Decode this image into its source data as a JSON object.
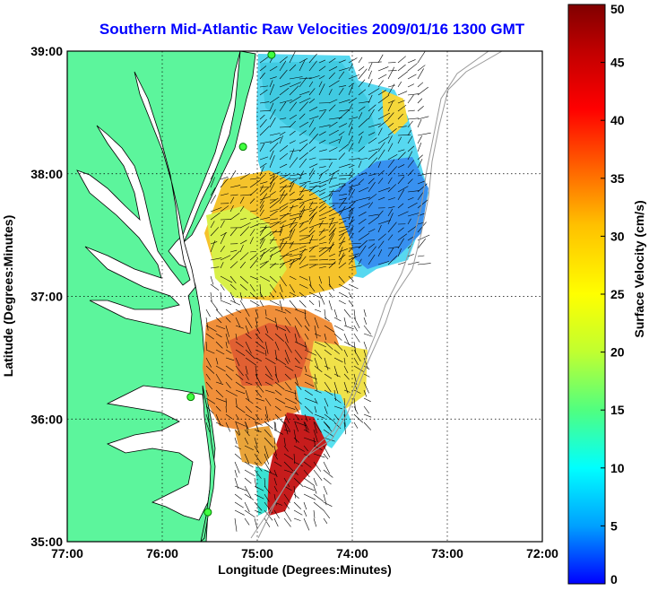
{
  "title": "Southern Mid-Atlantic Raw Velocities 2009/01/16 1300 GMT",
  "x_axis": {
    "label": "Longitude (Degrees:Minutes)",
    "ticks": [
      "77:00",
      "76:00",
      "75:00",
      "74:00",
      "73:00",
      "72:00"
    ],
    "range": [
      -77,
      -72
    ]
  },
  "y_axis": {
    "label": "Latitude (Degrees:Minutes)",
    "ticks": [
      "39:00",
      "38:00",
      "37:00",
      "36:00",
      "35:00"
    ],
    "range": [
      35,
      39
    ]
  },
  "colorbar": {
    "label": "Surface Velocity (cm/s)",
    "ticks": [
      "50",
      "45",
      "40",
      "35",
      "30",
      "25",
      "20",
      "15",
      "10",
      "5",
      "0"
    ],
    "range": [
      0,
      50
    ],
    "colormap": [
      "#0000ff",
      "#00a0ff",
      "#00ffff",
      "#50ff80",
      "#c0ff30",
      "#ffff00",
      "#ffc000",
      "#ff6000",
      "#ff0000",
      "#c00000",
      "#800000"
    ]
  },
  "colors": {
    "land": "#5cf59c",
    "grid": "#000000",
    "title": "#0000ff"
  },
  "stations": [
    {
      "name": "station",
      "lon": -74.85,
      "lat": 38.97
    },
    {
      "name": "station",
      "lon": -75.15,
      "lat": 38.22
    },
    {
      "name": "station",
      "lon": -75.7,
      "lat": 36.18
    },
    {
      "name": "station",
      "lon": -75.52,
      "lat": 35.24
    }
  ]
}
